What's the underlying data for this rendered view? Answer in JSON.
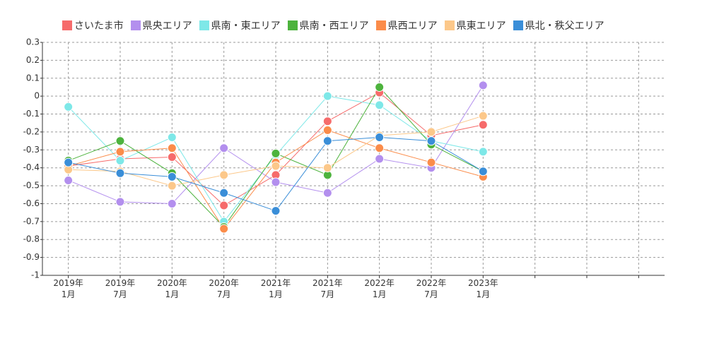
{
  "chart_data": {
    "type": "line",
    "categories": [
      "2019年\n1月",
      "2019年\n7月",
      "2020年\n1月",
      "2020年\n7月",
      "2021年\n1月",
      "2021年\n7月",
      "2022年\n1月",
      "2022年\n7月",
      "2023年\n1月",
      null,
      null,
      null
    ],
    "series": [
      {
        "name": "さいたま市",
        "color": "#f66b6b",
        "values": [
          -0.39,
          -0.35,
          -0.34,
          -0.61,
          -0.44,
          -0.14,
          0.02,
          -0.22,
          -0.16,
          null,
          null,
          null
        ]
      },
      {
        "name": "県央エリア",
        "color": "#b38fee",
        "values": [
          -0.47,
          -0.59,
          -0.6,
          -0.29,
          -0.48,
          -0.54,
          -0.35,
          -0.4,
          0.06,
          null,
          null,
          null
        ]
      },
      {
        "name": "県南・東エリア",
        "color": "#7ee8e8",
        "values": [
          -0.06,
          -0.36,
          -0.23,
          -0.7,
          -0.33,
          0,
          -0.05,
          -0.25,
          -0.31,
          null,
          null,
          null
        ]
      },
      {
        "name": "県南・西エリア",
        "color": "#4db33d",
        "values": [
          -0.36,
          -0.25,
          -0.43,
          -0.73,
          -0.32,
          -0.44,
          0.05,
          -0.27,
          -0.42,
          null,
          null,
          null
        ]
      },
      {
        "name": "県西エリア",
        "color": "#fb8c4a",
        "values": [
          -0.39,
          -0.31,
          -0.29,
          -0.74,
          -0.37,
          -0.19,
          -0.29,
          -0.37,
          -0.45,
          null,
          null,
          null
        ]
      },
      {
        "name": "県東エリア",
        "color": "#fcc88a",
        "values": [
          -0.41,
          -0.42,
          -0.5,
          -0.44,
          -0.39,
          -0.4,
          -0.22,
          -0.2,
          -0.11,
          null,
          null,
          null
        ]
      },
      {
        "name": "県北・秩父エリア",
        "color": "#3a8ed8",
        "values": [
          -0.37,
          -0.43,
          -0.45,
          -0.54,
          -0.64,
          -0.25,
          -0.23,
          -0.25,
          -0.42,
          null,
          null,
          null
        ]
      }
    ],
    "ylim": [
      -1,
      0.3
    ],
    "yticks": [
      0.3,
      0.2,
      0.1,
      0,
      -0.1,
      -0.2,
      -0.3,
      -0.4,
      -0.5,
      -0.6,
      -0.7,
      -0.8,
      -0.9,
      -1
    ],
    "grid": true
  }
}
